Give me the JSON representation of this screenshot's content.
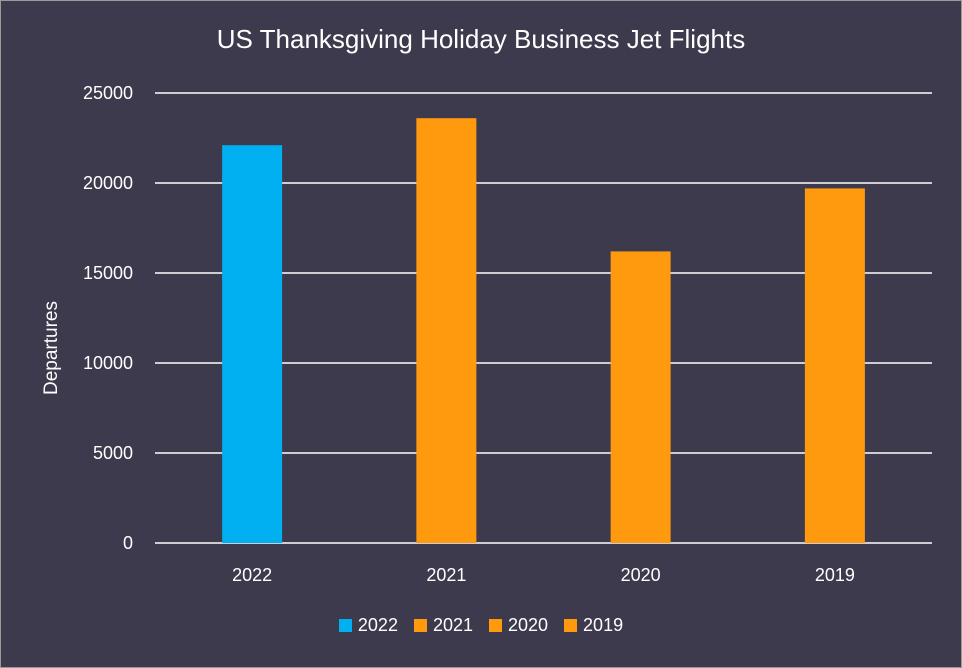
{
  "chart_data": {
    "type": "bar",
    "title": "US Thanksgiving Holiday Business Jet Flights",
    "ylabel": "Departures",
    "xlabel": "",
    "categories": [
      "2022",
      "2021",
      "2020",
      "2019"
    ],
    "values": [
      22100,
      23600,
      16200,
      19700
    ],
    "colors": [
      "#00b0f0",
      "#ff9a0e",
      "#ff9a0e",
      "#ff9a0e"
    ],
    "ylim": [
      0,
      25000
    ],
    "yticks": [
      0,
      5000,
      10000,
      15000,
      20000,
      25000
    ],
    "grid": true,
    "legend": {
      "position": "bottom",
      "entries": [
        {
          "label": "2022",
          "color": "#00b0f0"
        },
        {
          "label": "2021",
          "color": "#ff9a0e"
        },
        {
          "label": "2020",
          "color": "#ff9a0e"
        },
        {
          "label": "2019",
          "color": "#ff9a0e"
        }
      ]
    }
  }
}
